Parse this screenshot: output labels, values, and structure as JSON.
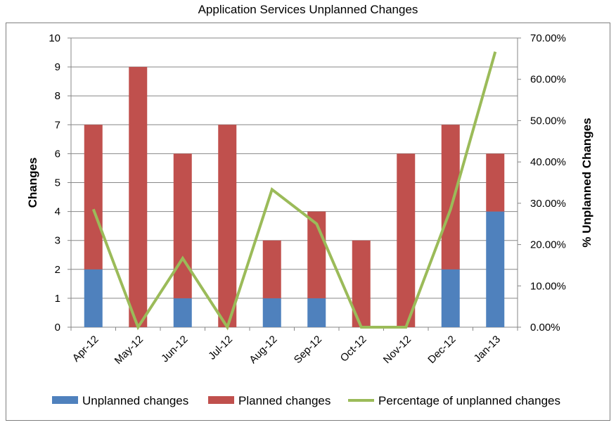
{
  "chart_data": {
    "type": "bar",
    "title": "Application Services Unplanned Changes",
    "ylabel": "Changes",
    "y2label": "% Unplanned Changes",
    "categories": [
      "Apr-12",
      "May-12",
      "Jun-12",
      "Jul-12",
      "Aug-12",
      "Sep-12",
      "Oct-12",
      "Nov-12",
      "Dec-12",
      "Jan-13"
    ],
    "ylim": [
      0,
      10
    ],
    "y2lim": [
      0,
      0.7
    ],
    "yticks": [
      "0",
      "1",
      "2",
      "3",
      "4",
      "5",
      "6",
      "7",
      "8",
      "9",
      "10"
    ],
    "y2ticks": [
      "0.00%",
      "10.00%",
      "20.00%",
      "30.00%",
      "40.00%",
      "50.00%",
      "60.00%",
      "70.00%"
    ],
    "stacked": true,
    "series": [
      {
        "name": "Unplanned changes",
        "kind": "bar",
        "color": "#4f81bd",
        "values": [
          2,
          0,
          1,
          0,
          1,
          1,
          0,
          0,
          2,
          4
        ]
      },
      {
        "name": "Planned changes",
        "kind": "bar",
        "color": "#c0504d",
        "values": [
          5,
          9,
          5,
          7,
          2,
          3,
          3,
          6,
          5,
          2
        ]
      },
      {
        "name": "Percentage of unplanned changes",
        "kind": "line",
        "axis": "secondary",
        "color": "#9bbb59",
        "values": [
          0.2857,
          0,
          0.1667,
          0,
          0.3333,
          0.25,
          0,
          0,
          0.2857,
          0.6667
        ]
      }
    ],
    "legend_position": "bottom",
    "grid": "horizontal"
  }
}
